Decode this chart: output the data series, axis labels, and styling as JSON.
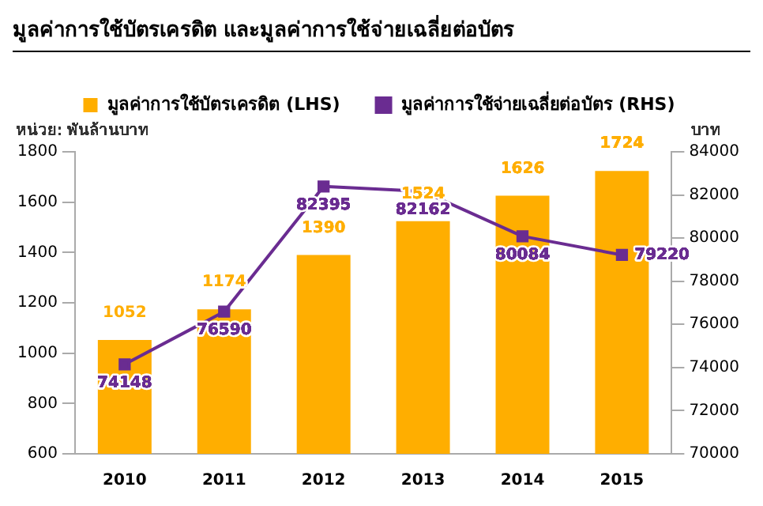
{
  "chart_data": {
    "type": "bar",
    "title": "มูลค่าการใช้บัตรเครดิต และมูลค่าการใช้จ่ายเฉลี่ยต่อบัตร",
    "ylabel": "หน่วย: พันล้านบาท",
    "y2label": "บาท",
    "categories": [
      "2010",
      "2011",
      "2012",
      "2013",
      "2014",
      "2015"
    ],
    "series": [
      {
        "name": "มูลค่าการใช้บัตรเครดิต (LHS)",
        "color": "#ffae00",
        "values": [
          1052,
          1174,
          1390,
          1524,
          1626,
          1724
        ]
      },
      {
        "name": "มูลค่าการใช้จ่ายเฉลี่ยต่อบัตร (RHS)",
        "type": "line",
        "axis": "y2",
        "color": "#6a2c91",
        "marker": "square",
        "values": [
          74148,
          76590,
          82395,
          82162,
          80084,
          79220
        ]
      }
    ],
    "ylim": [
      600,
      1800
    ],
    "yticks": [
      600,
      800,
      1000,
      1200,
      1400,
      1600,
      1800
    ],
    "y2lim": [
      70000,
      84000
    ],
    "y2ticks": [
      70000,
      72000,
      74000,
      76000,
      78000,
      80000,
      82000,
      84000
    ],
    "data_labels": true,
    "legend": "top",
    "grid": false
  }
}
